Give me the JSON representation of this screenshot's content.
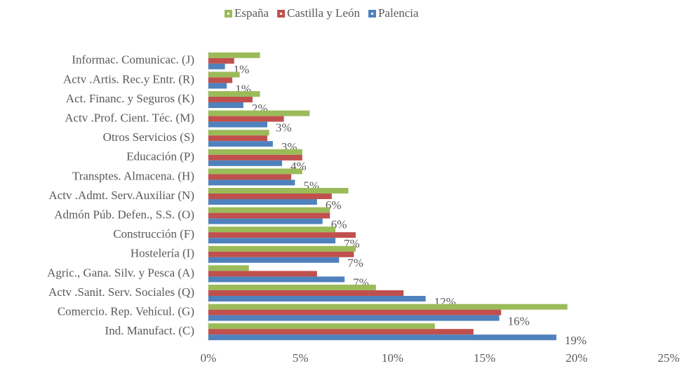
{
  "chart_data": {
    "type": "bar",
    "orientation": "horizontal",
    "categories": [
      "Informac. Comunicac. (J)",
      "Actv .Artis. Rec.y Entr. (R)",
      "Act. Financ. y Seguros (K)",
      "Actv .Prof. Cient. Téc. (M)",
      "Otros Servicios (S)",
      "Educación (P)",
      "Transptes. Almacena. (H)",
      "Actv .Admt. Serv.Auxiliar (N)",
      "Admón Púb. Defen., S.S. (O)",
      "Construcción (F)",
      "Hostelería (I)",
      "Agric., Gana. Silv. y Pesca (A)",
      "Actv .Sanit. Serv. Sociales (Q)",
      "Comercio. Rep. Vehícul. (G)",
      "Ind. Manufact.   (C)"
    ],
    "series": [
      {
        "name": "España",
        "color": "#9bbb59",
        "values": [
          2.8,
          1.7,
          2.8,
          5.5,
          3.3,
          5.1,
          5.1,
          7.6,
          6.6,
          6.9,
          8.0,
          2.2,
          9.1,
          19.5,
          12.3
        ]
      },
      {
        "name": "Castilla y León",
        "color": "#c0504d",
        "values": [
          1.4,
          1.3,
          2.4,
          4.1,
          3.2,
          5.1,
          4.5,
          6.7,
          6.6,
          8.0,
          7.9,
          5.9,
          10.6,
          15.9,
          14.4
        ]
      },
      {
        "name": "Palencia",
        "color": "#4f81bd",
        "values": [
          0.9,
          1.0,
          1.9,
          3.2,
          3.5,
          4.0,
          4.7,
          5.9,
          6.2,
          6.9,
          7.1,
          7.4,
          11.8,
          15.8,
          18.9
        ],
        "value_labels": [
          "1%",
          "1%",
          "2%",
          "3%",
          "3%",
          "4%",
          "5%",
          "6%",
          "6%",
          "7%",
          "7%",
          "7%",
          "12%",
          "16%",
          "19%"
        ]
      }
    ],
    "xlim": [
      0,
      25
    ],
    "xticks": [
      {
        "value": 0,
        "label": "0%"
      },
      {
        "value": 5,
        "label": "5%"
      },
      {
        "value": 10,
        "label": "10%"
      },
      {
        "value": 15,
        "label": "15%"
      },
      {
        "value": 20,
        "label": "20%"
      },
      {
        "value": 25,
        "label": "25%"
      }
    ],
    "legend": "top"
  }
}
